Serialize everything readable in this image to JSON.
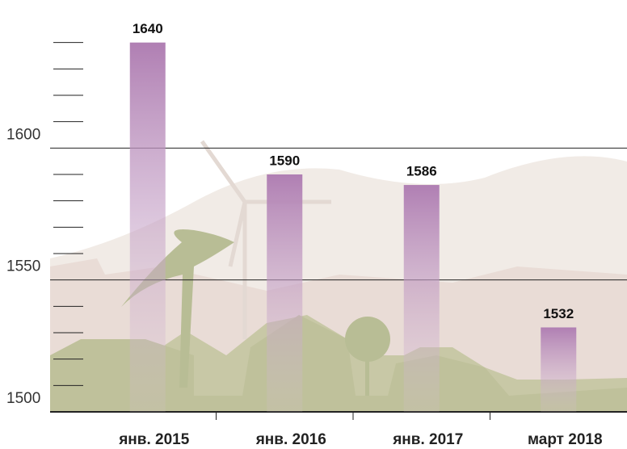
{
  "chart_data": {
    "type": "bar",
    "categories": [
      "янв. 2015",
      "янв. 2016",
      "янв. 2017",
      "март 2018"
    ],
    "values": [
      1640,
      1590,
      1586,
      1532
    ],
    "color": "#b07fb3",
    "ylim": [
      1500,
      1650
    ],
    "yticks": [
      1500,
      1550,
      1600
    ],
    "minor_yticks": [
      1510,
      1520,
      1530,
      1540,
      1560,
      1570,
      1580,
      1590,
      1610,
      1620,
      1630,
      1640
    ],
    "grid": true
  }
}
